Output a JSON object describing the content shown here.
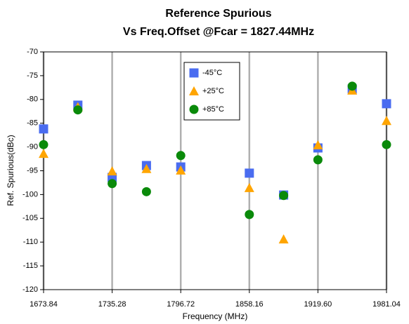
{
  "chart_data": {
    "type": "scatter",
    "title": "Reference Spurious",
    "subtitle": "Vs Freq.Offset @Fcar = 1827.44MHz",
    "xlabel": "Frequency (MHz)",
    "ylabel": "Ref. Spurious(dBc)",
    "xlim": [
      1673.84,
      1981.04
    ],
    "xticks": [
      1673.84,
      1735.28,
      1796.72,
      1858.16,
      {
        "value": 1919.6,
        "label": "1919.60"
      },
      1981.04
    ],
    "ylim": [
      -120,
      -70
    ],
    "yticks": [
      -70,
      -75,
      -80,
      -85,
      -90,
      -95,
      -100,
      -105,
      -110,
      -115,
      -120
    ],
    "grid": "x",
    "legend": "top",
    "series": [
      {
        "name": "-45°C",
        "color": "#4a6cf0",
        "marker": "square",
        "x": [
          1673.84,
          1704.56,
          1735.28,
          1766.0,
          1796.72,
          1858.16,
          1888.88,
          1919.6,
          1950.32,
          1981.04
        ],
        "values": [
          -86.2,
          -81.2,
          -96.4,
          -93.9,
          -94.2,
          -95.5,
          -100.1,
          -90.2,
          -77.8,
          -80.9
        ]
      },
      {
        "name": "+25°C",
        "color": "#ffa500",
        "marker": "triangle",
        "x": [
          1673.84,
          1704.56,
          1735.28,
          1766.0,
          1796.72,
          1858.16,
          1888.88,
          1919.6,
          1950.32,
          1981.04
        ],
        "values": [
          -91.4,
          -81.6,
          -95.1,
          -94.6,
          -94.9,
          -98.6,
          -109.4,
          -89.6,
          -78.1,
          -84.5
        ]
      },
      {
        "name": "+85°C",
        "color": "#0a8a0a",
        "marker": "circle",
        "x": [
          1673.84,
          1704.56,
          1735.28,
          1766.0,
          1796.72,
          1858.16,
          1888.88,
          1919.6,
          1950.32,
          1981.04
        ],
        "values": [
          -89.5,
          -82.2,
          -97.7,
          -99.4,
          -91.8,
          -104.2,
          -100.2,
          -92.7,
          -77.2,
          -89.5
        ]
      }
    ]
  }
}
